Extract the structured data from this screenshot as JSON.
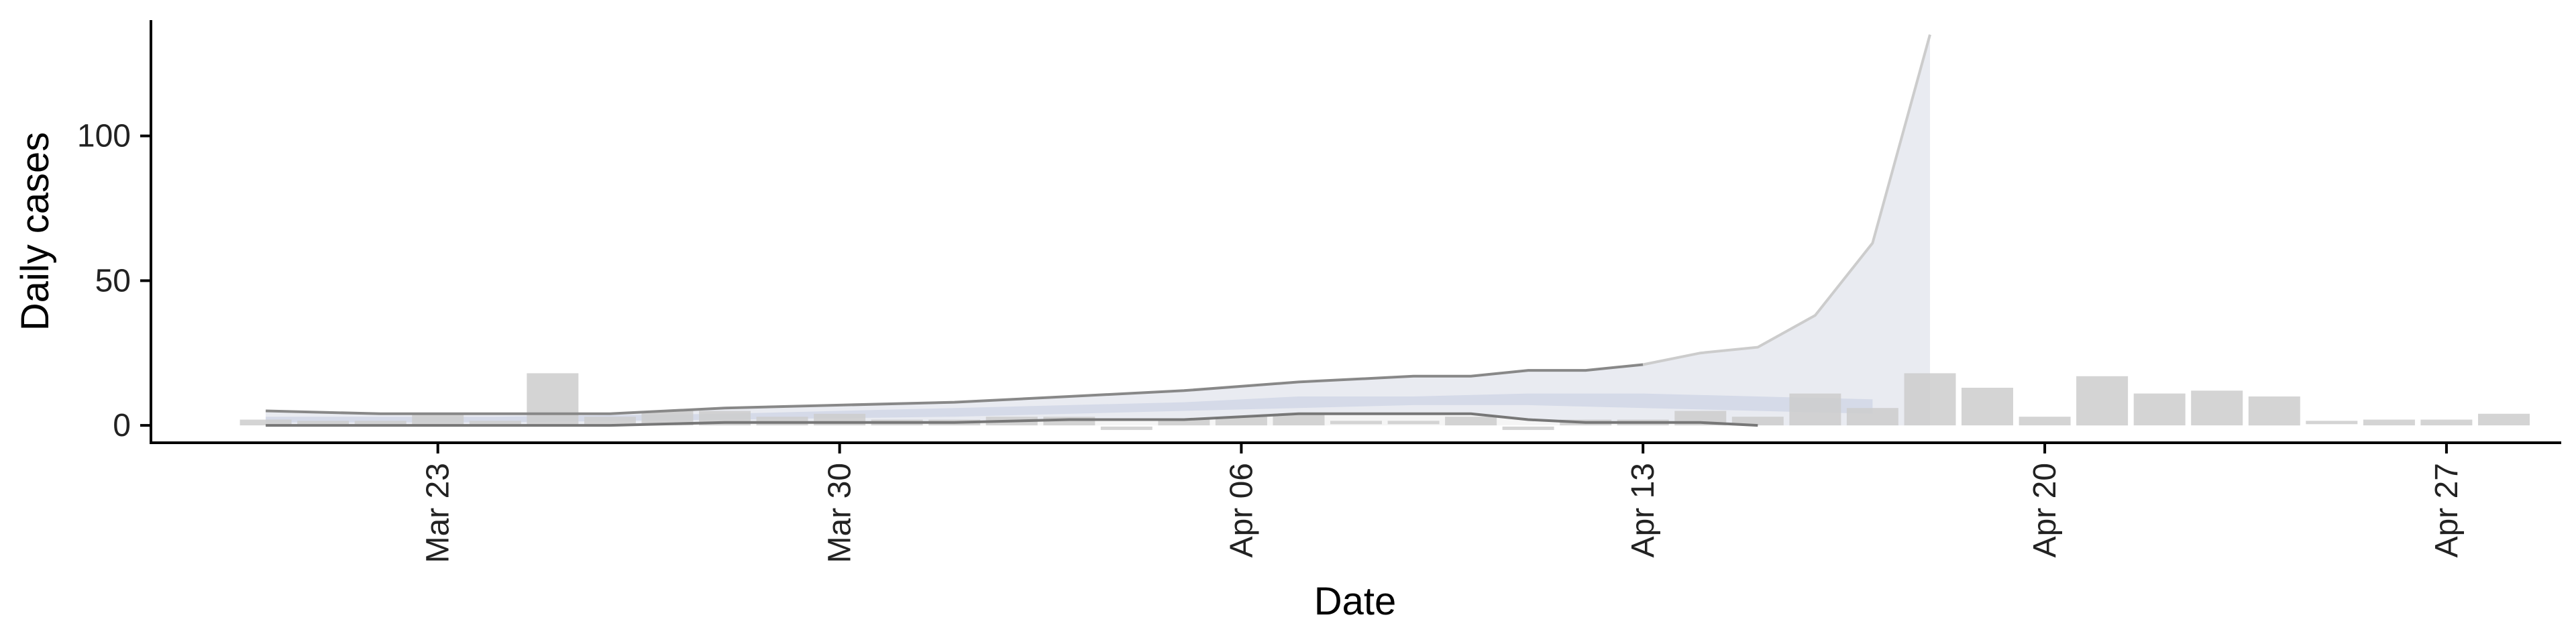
{
  "chart_data": {
    "type": "bar",
    "xlabel": "Date",
    "ylabel": "Daily cases",
    "x_ticks": [
      "Mar 23",
      "Mar 30",
      "Apr 06",
      "Apr 13",
      "Apr 20",
      "Apr 27"
    ],
    "x_tick_dates": [
      "2020-03-23",
      "2020-03-30",
      "2020-04-06",
      "2020-04-13",
      "2020-04-20",
      "2020-04-27"
    ],
    "y_ticks": [
      0,
      50,
      100
    ],
    "ylim": [
      -6,
      140
    ],
    "xlim": [
      "2020-03-18",
      "2020-04-29"
    ],
    "grid": false,
    "colors": {
      "bars": "#cccccc",
      "band_outer": "#e6e9f0",
      "band_inner": "#cfd6e6",
      "upper_line": "#888888",
      "lower_line": "#777777",
      "projection_fill": "#f4f4f4",
      "projection_line": "#cccccc"
    },
    "bars": [
      {
        "date": "2020-03-20",
        "value": 2
      },
      {
        "date": "2020-03-21",
        "value": 1
      },
      {
        "date": "2020-03-22",
        "value": 1
      },
      {
        "date": "2020-03-23",
        "value": 4
      },
      {
        "date": "2020-03-24",
        "value": 1
      },
      {
        "date": "2020-03-25",
        "value": 18
      },
      {
        "date": "2020-03-26",
        "value": 3
      },
      {
        "date": "2020-03-27",
        "value": 5
      },
      {
        "date": "2020-03-28",
        "value": 5
      },
      {
        "date": "2020-03-29",
        "value": 3
      },
      {
        "date": "2020-03-30",
        "value": 4
      },
      {
        "date": "2020-03-31",
        "value": 2
      },
      {
        "date": "2020-04-01",
        "value": 2
      },
      {
        "date": "2020-04-02",
        "value": 3
      },
      {
        "date": "2020-04-03",
        "value": 3
      },
      {
        "date": "2020-04-04",
        "value": -1
      },
      {
        "date": "2020-04-05",
        "value": 2
      },
      {
        "date": "2020-04-06",
        "value": 3
      },
      {
        "date": "2020-04-07",
        "value": 4
      },
      {
        "date": "2020-04-08",
        "value": 1
      },
      {
        "date": "2020-04-09",
        "value": 1
      },
      {
        "date": "2020-04-10",
        "value": 3
      },
      {
        "date": "2020-04-11",
        "value": -1
      },
      {
        "date": "2020-04-12",
        "value": 2
      },
      {
        "date": "2020-04-13",
        "value": 2
      },
      {
        "date": "2020-04-14",
        "value": 5
      },
      {
        "date": "2020-04-15",
        "value": 3
      },
      {
        "date": "2020-04-16",
        "value": 11
      },
      {
        "date": "2020-04-17",
        "value": 6
      },
      {
        "date": "2020-04-18",
        "value": 18
      },
      {
        "date": "2020-04-19",
        "value": 13
      },
      {
        "date": "2020-04-20",
        "value": 3
      },
      {
        "date": "2020-04-21",
        "value": 17
      },
      {
        "date": "2020-04-22",
        "value": 11
      },
      {
        "date": "2020-04-23",
        "value": 12
      },
      {
        "date": "2020-04-24",
        "value": 10
      },
      {
        "date": "2020-04-25",
        "value": 1
      },
      {
        "date": "2020-04-26",
        "value": 2
      },
      {
        "date": "2020-04-27",
        "value": 2
      },
      {
        "date": "2020-04-28",
        "value": 4
      }
    ],
    "band_outer": [
      {
        "date": "2020-03-20",
        "low": 0,
        "high": 5
      },
      {
        "date": "2020-03-22",
        "low": 0,
        "high": 4
      },
      {
        "date": "2020-03-24",
        "low": 0,
        "high": 4
      },
      {
        "date": "2020-03-26",
        "low": 0,
        "high": 4
      },
      {
        "date": "2020-03-28",
        "low": 1,
        "high": 6
      },
      {
        "date": "2020-03-30",
        "low": 1,
        "high": 7
      },
      {
        "date": "2020-04-01",
        "low": 1,
        "high": 8
      },
      {
        "date": "2020-04-03",
        "low": 2,
        "high": 10
      },
      {
        "date": "2020-04-05",
        "low": 2,
        "high": 12
      },
      {
        "date": "2020-04-07",
        "low": 4,
        "high": 15
      },
      {
        "date": "2020-04-09",
        "low": 4,
        "high": 17
      },
      {
        "date": "2020-04-10",
        "low": 4,
        "high": 17
      },
      {
        "date": "2020-04-11",
        "low": 2,
        "high": 19
      },
      {
        "date": "2020-04-12",
        "low": 1,
        "high": 19
      },
      {
        "date": "2020-04-13",
        "low": 1,
        "high": 21
      },
      {
        "date": "2020-04-14",
        "low": 1,
        "high": 25
      },
      {
        "date": "2020-04-15",
        "low": 0,
        "high": 27
      },
      {
        "date": "2020-04-16",
        "low": 0,
        "high": 38
      },
      {
        "date": "2020-04-17",
        "low": 0,
        "high": 63
      },
      {
        "date": "2020-04-18",
        "low": 0,
        "high": 135
      }
    ],
    "band_inner": [
      {
        "date": "2020-03-20",
        "low": 1,
        "high": 3
      },
      {
        "date": "2020-03-24",
        "low": 1,
        "high": 3
      },
      {
        "date": "2020-03-28",
        "low": 2,
        "high": 4
      },
      {
        "date": "2020-04-01",
        "low": 3,
        "high": 6
      },
      {
        "date": "2020-04-05",
        "low": 5,
        "high": 8
      },
      {
        "date": "2020-04-07",
        "low": 6,
        "high": 10
      },
      {
        "date": "2020-04-09",
        "low": 7,
        "high": 10
      },
      {
        "date": "2020-04-11",
        "low": 7,
        "high": 11
      },
      {
        "date": "2020-04-13",
        "low": 6,
        "high": 11
      },
      {
        "date": "2020-04-15",
        "low": 5,
        "high": 10
      },
      {
        "date": "2020-04-17",
        "low": 4,
        "high": 9
      }
    ]
  }
}
